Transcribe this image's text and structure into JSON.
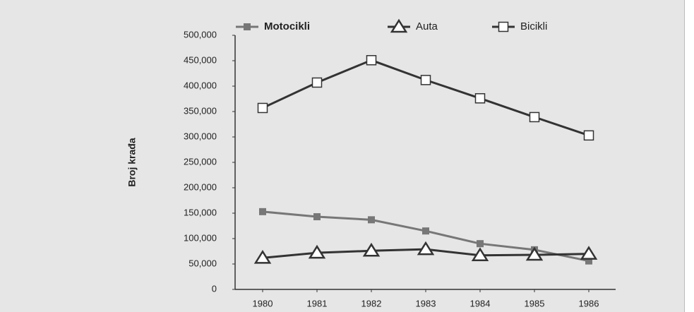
{
  "chart_data": {
    "type": "line",
    "y_label": "Broj krađa",
    "categories": [
      "1980",
      "1981",
      "1982",
      "1983",
      "1984",
      "1985",
      "1986"
    ],
    "series": [
      {
        "name": "Motocikli",
        "color": "#777777",
        "marker": "square-filled",
        "values": [
          153000,
          143000,
          137000,
          115000,
          90000,
          78000,
          56000
        ]
      },
      {
        "name": "Auta",
        "color": "#333333",
        "marker": "triangle-open",
        "values": [
          62000,
          72000,
          76000,
          79000,
          67000,
          68000,
          70000
        ]
      },
      {
        "name": "Bicikli",
        "color": "#333333",
        "marker": "square-open",
        "values": [
          357000,
          407000,
          451000,
          412000,
          376000,
          339000,
          303000
        ]
      }
    ],
    "ylim": [
      0,
      500000
    ],
    "yticks": [
      0,
      {
        "value": 50000,
        "label": "50,000"
      },
      {
        "value": 100000,
        "label": "100,000"
      },
      {
        "value": 150000,
        "label": "150,000"
      },
      {
        "value": 200000,
        "label": "200,000"
      },
      {
        "value": 250000,
        "label": "250,000"
      },
      {
        "value": 300000,
        "label": "300,000"
      },
      {
        "value": 350000,
        "label": "350,000"
      },
      {
        "value": 400000,
        "label": "400,000"
      },
      {
        "value": 450000,
        "label": "450,000"
      },
      {
        "value": 500000,
        "label": "500,000"
      }
    ],
    "legend": "top"
  }
}
